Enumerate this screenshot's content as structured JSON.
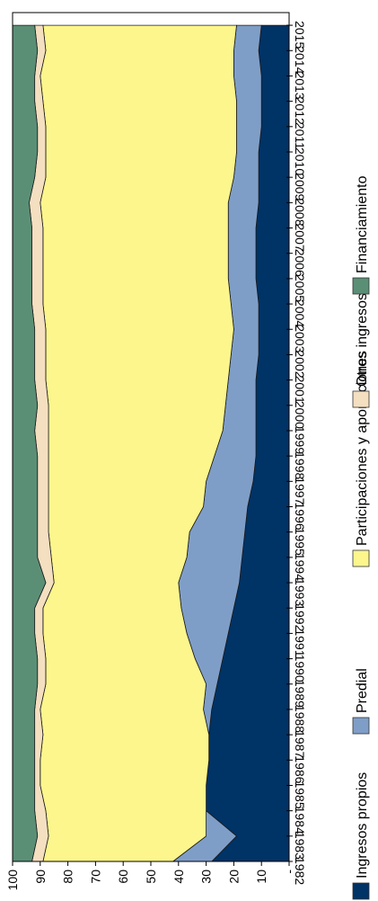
{
  "chart_data": {
    "type": "area",
    "stacked": true,
    "orientation": "rotated-90",
    "x": [
      "1982",
      "1983",
      "1984",
      "1985",
      "1986",
      "1987",
      "1988",
      "1989",
      "1990",
      "1991",
      "1992",
      "1993",
      "1994",
      "1995",
      "1996",
      "1997",
      "1998",
      "1999",
      "2000",
      "2001",
      "2002",
      "2003",
      "2004",
      "2005",
      "2006",
      "2007",
      "2008",
      "2009",
      "2010",
      "2011",
      "2012",
      "2013",
      "2014",
      "2015"
    ],
    "y_ticks": [
      "-",
      "10",
      "20",
      "30",
      "40",
      "50",
      "60",
      "70",
      "80",
      "90",
      "100"
    ],
    "ylim": [
      0,
      100
    ],
    "series": [
      {
        "name": "Ingresos propios",
        "color": "#003366",
        "values": [
          28,
          19,
          30,
          30,
          29,
          29,
          28,
          26,
          24,
          22,
          20,
          18,
          17,
          16,
          15,
          13,
          12,
          12,
          12,
          12,
          11,
          11,
          11,
          12,
          12,
          12,
          11,
          11,
          11,
          10,
          10,
          10,
          11,
          10
        ]
      },
      {
        "name": "Predial",
        "color": "#7f9ec7",
        "values": [
          14,
          11,
          0,
          0,
          0,
          0,
          3,
          4,
          10,
          15,
          19,
          22,
          20,
          20,
          16,
          17,
          15,
          12,
          11,
          10,
          10,
          9,
          10,
          10,
          10,
          10,
          11,
          9,
          8,
          9,
          9,
          10,
          9,
          9
        ]
      },
      {
        "name": "Participaciones y aportaciones",
        "color": "#fcf68c",
        "values": [
          47,
          57,
          58,
          60,
          61,
          60,
          59,
          58,
          54,
          52,
          50,
          45,
          49,
          51,
          56,
          57,
          60,
          63,
          64,
          66,
          67,
          68,
          68,
          67,
          67,
          67,
          68,
          68,
          69,
          69,
          70,
          70,
          68,
          70
        ]
      },
      {
        "name": "Otros ingresos",
        "color": "#f4dfc0",
        "values": [
          4,
          4,
          4,
          2,
          2,
          3,
          2,
          3,
          3,
          3,
          3,
          3,
          5,
          4,
          4,
          4,
          4,
          5,
          4,
          4,
          4,
          4,
          4,
          4,
          4,
          4,
          4,
          4,
          3,
          3,
          3,
          2,
          3,
          3
        ]
      },
      {
        "name": "Financiamiento",
        "color": "#5a8f76",
        "values": [
          7,
          9,
          8,
          8,
          8,
          8,
          8,
          9,
          9,
          8,
          8,
          12,
          9,
          9,
          9,
          9,
          9,
          8,
          9,
          8,
          8,
          8,
          7,
          7,
          7,
          7,
          6,
          8,
          9,
          9,
          8,
          8,
          9,
          8
        ]
      }
    ],
    "grid": false,
    "legend": "right"
  }
}
